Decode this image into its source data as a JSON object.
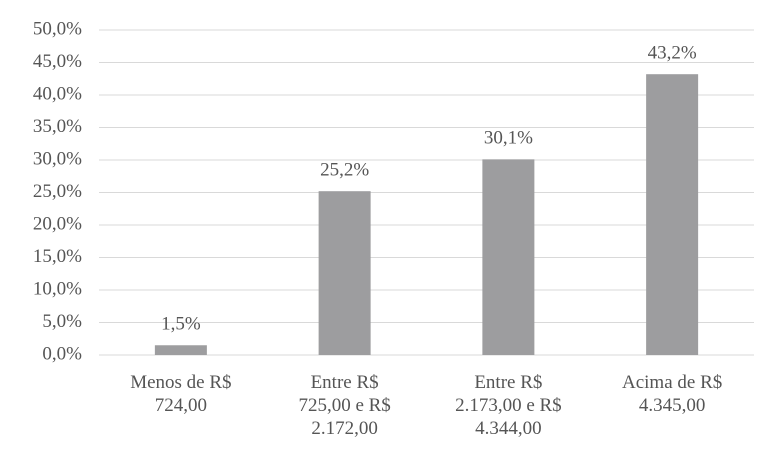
{
  "chart_data": {
    "type": "bar",
    "categories": [
      "Menos de R$\n724,00",
      "Entre R$\n725,00 e R$\n2.172,00",
      "Entre R$\n2.173,00 e R$\n4.344,00",
      "Acima de R$\n4.345,00"
    ],
    "values": [
      1.5,
      25.2,
      30.1,
      43.2
    ],
    "value_labels": [
      "1,5%",
      "25,2%",
      "30,1%",
      "43,2%"
    ],
    "color": "#9d9d9f",
    "ylim": [
      0,
      50
    ],
    "yticks": [
      {
        "value": 0,
        "label": "0,0%"
      },
      {
        "value": 5,
        "label": "5,0%"
      },
      {
        "value": 10,
        "label": "10,0%"
      },
      {
        "value": 15,
        "label": "15,0%"
      },
      {
        "value": 20,
        "label": "20,0%"
      },
      {
        "value": 25,
        "label": "25,0%"
      },
      {
        "value": 30,
        "label": "30,0%"
      },
      {
        "value": 35,
        "label": "35,0%"
      },
      {
        "value": 40,
        "label": "40,0%"
      },
      {
        "value": 45,
        "label": "45,0%"
      },
      {
        "value": 50,
        "label": "50,0%"
      }
    ],
    "grid": true
  }
}
